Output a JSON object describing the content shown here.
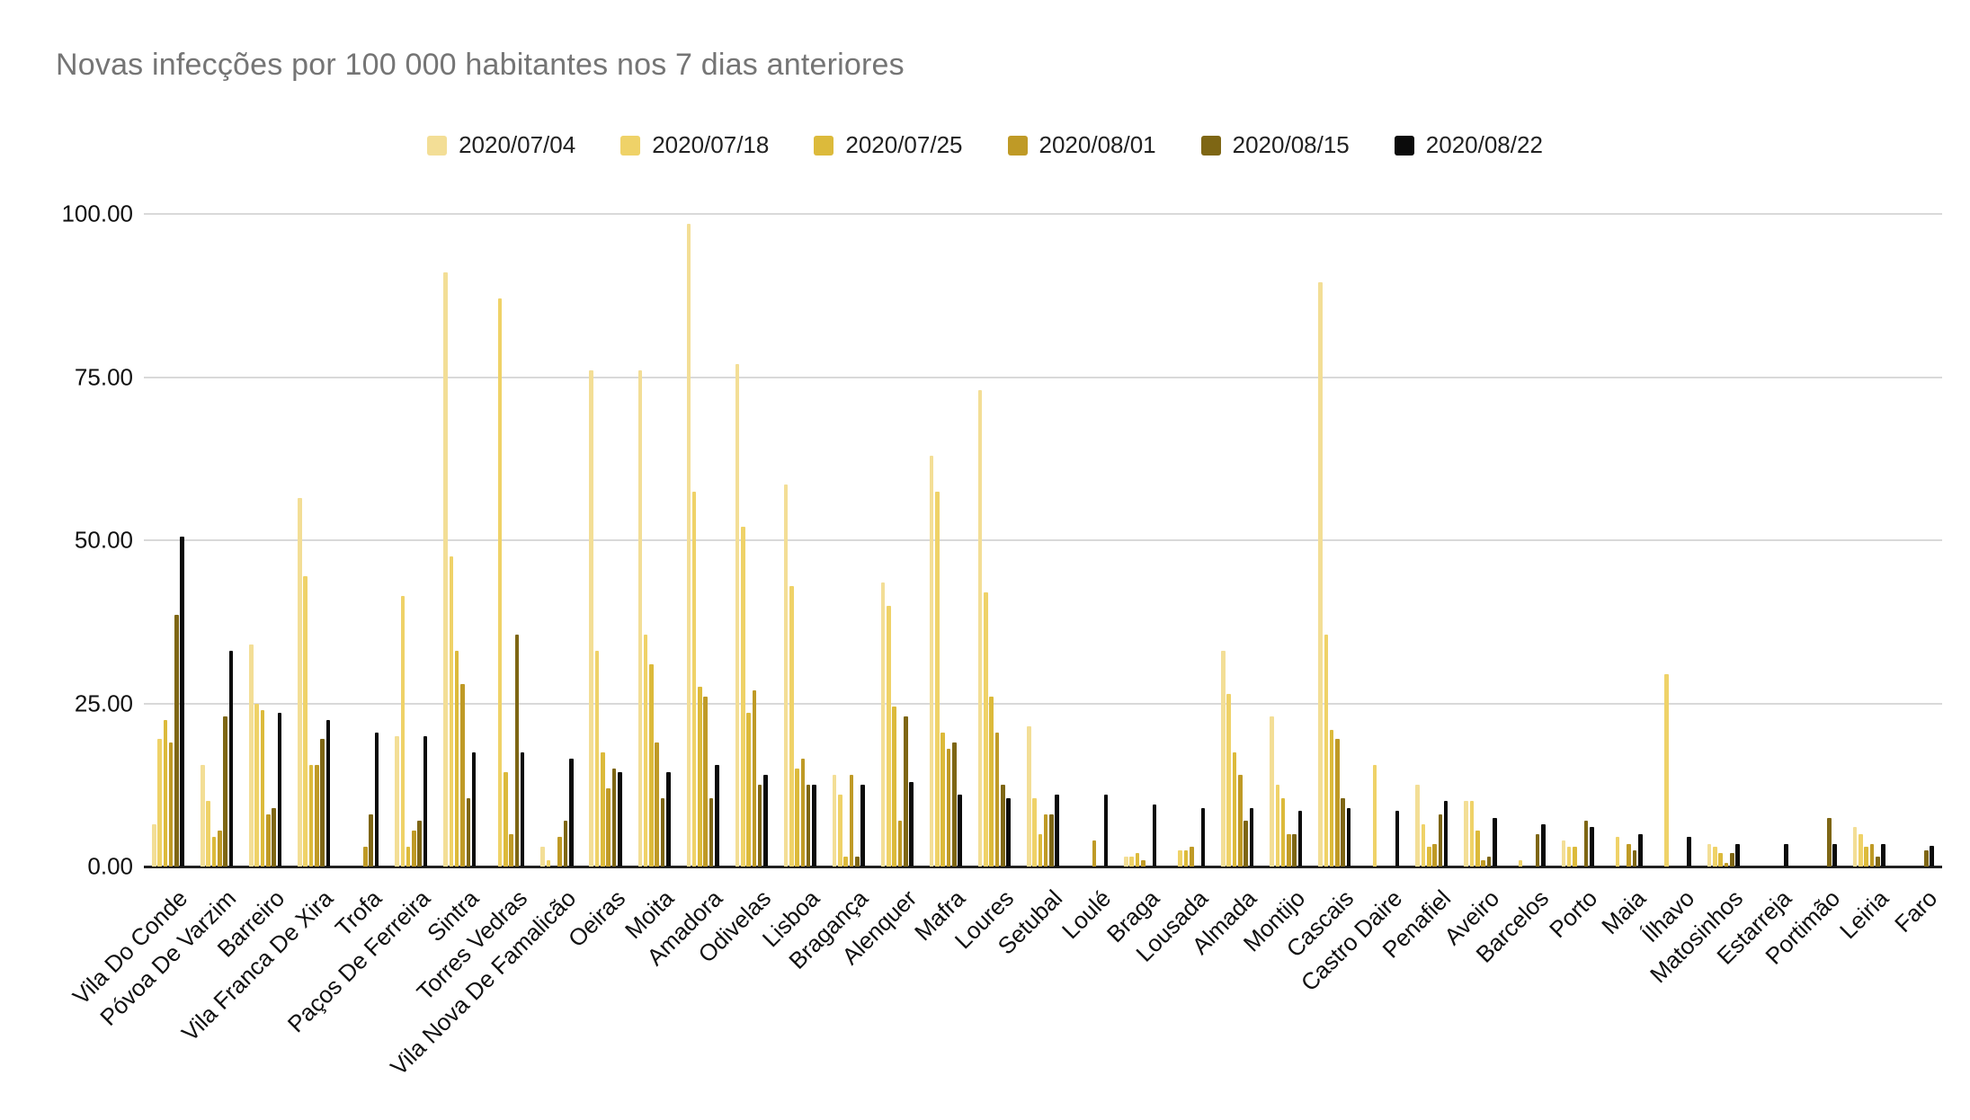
{
  "title": "Novas infecções por 100 000 habitantes nos 7 dias anteriores",
  "colors": {
    "background": "#ffffff",
    "title_text": "#757575",
    "axis_label_text": "#111111",
    "gridline": "#d9d9d9",
    "axis_baseline": "#212121"
  },
  "chart_data": {
    "type": "bar",
    "title": "Novas infecções por 100 000 habitantes nos 7 dias anteriores",
    "xlabel": "",
    "ylabel": "",
    "ylim": [
      0,
      100
    ],
    "grid": true,
    "legend_position": "top",
    "y_ticks": [
      {
        "value": 0,
        "label": "0.00"
      },
      {
        "value": 25,
        "label": "25.00"
      },
      {
        "value": 50,
        "label": "50.00"
      },
      {
        "value": 75,
        "label": "75.00"
      },
      {
        "value": 100,
        "label": "100.00"
      }
    ],
    "categories": [
      "Vila Do Conde",
      "Póvoa De Varzim",
      "Barreiro",
      "Vila Franca De Xira",
      "Trofa",
      "Paços De Ferreira",
      "Sintra",
      "Torres Vedras",
      "Vila Nova De Famalicão",
      "Oeiras",
      "Moita",
      "Amadora",
      "Odivelas",
      "Lisboa",
      "Bragança",
      "Alenquer",
      "Mafra",
      "Loures",
      "Setubal",
      "Loulé",
      "Braga",
      "Lousada",
      "Almada",
      "Montijo",
      "Cascais",
      "Castro Daire",
      "Penafiel",
      "Aveiro",
      "Barcelos",
      "Porto",
      "Maia",
      "Ílhavo",
      "Matosinhos",
      "Estarreja",
      "Portimão",
      "Leiria",
      "Faro"
    ],
    "series": [
      {
        "name": "2020/07/04",
        "color": "#F3DE96",
        "values": [
          6.5,
          15.5,
          34,
          56.5,
          0,
          20,
          91,
          0,
          3,
          76,
          76,
          98.5,
          77,
          58.5,
          14,
          43.5,
          63,
          73,
          21.5,
          0,
          1.5,
          0,
          33,
          23,
          89.5,
          0,
          12.5,
          10,
          0,
          4,
          0,
          0,
          3.5,
          0,
          0,
          6,
          0
        ]
      },
      {
        "name": "2020/07/18",
        "color": "#EFD268",
        "values": [
          19.5,
          10,
          25,
          44.5,
          0,
          41.5,
          47.5,
          87,
          1,
          33,
          35.5,
          57.5,
          52,
          43,
          11,
          40,
          57.5,
          42,
          10.5,
          0,
          1.5,
          2.5,
          26.5,
          12.5,
          35.5,
          15.5,
          6.5,
          10,
          1,
          3,
          4.5,
          29.5,
          3,
          0,
          0,
          5,
          0
        ]
      },
      {
        "name": "2020/07/25",
        "color": "#DCBA3B",
        "values": [
          22.5,
          4.5,
          24,
          15.5,
          0,
          3,
          33,
          14.5,
          0,
          17.5,
          31,
          27.5,
          23.5,
          15,
          1.5,
          24.5,
          20.5,
          26,
          5,
          0,
          2,
          2.5,
          17.5,
          10.5,
          21,
          0,
          3,
          5.5,
          0,
          3,
          0,
          0,
          2,
          0,
          0,
          3,
          0
        ]
      },
      {
        "name": "2020/08/01",
        "color": "#BF9A26",
        "values": [
          19,
          5.5,
          8,
          15.5,
          3,
          5.5,
          28,
          5,
          4.5,
          12,
          19,
          26,
          27,
          16.5,
          14,
          7,
          18,
          20.5,
          8,
          4,
          1,
          3,
          14,
          5,
          19.5,
          0,
          3.5,
          1,
          0,
          0,
          3.5,
          0,
          0.5,
          0,
          0,
          3.5,
          0
        ]
      },
      {
        "name": "2020/08/15",
        "color": "#7E6614",
        "values": [
          38.5,
          23,
          9,
          19.5,
          8,
          7,
          10.5,
          35.5,
          7,
          15,
          10.5,
          10.5,
          12.5,
          12.5,
          1.5,
          23,
          19,
          12.5,
          8,
          0,
          0,
          0,
          7,
          5,
          10.5,
          0,
          8,
          1.5,
          5,
          7,
          2.5,
          0,
          2,
          0,
          7.5,
          1.5,
          2.5
        ]
      },
      {
        "name": "2020/08/22",
        "color": "#0B0B0B",
        "values": [
          50.5,
          33,
          23.5,
          22.5,
          20.5,
          20,
          17.5,
          17.5,
          16.5,
          14.5,
          14.5,
          15.5,
          14,
          12.5,
          12.5,
          13,
          11,
          10.5,
          11,
          11,
          9.5,
          9,
          9,
          8.5,
          9,
          8.5,
          10,
          7.5,
          6.5,
          6,
          5,
          4.5,
          3.5,
          3.5,
          3.5,
          3.5,
          3.2
        ]
      }
    ]
  }
}
